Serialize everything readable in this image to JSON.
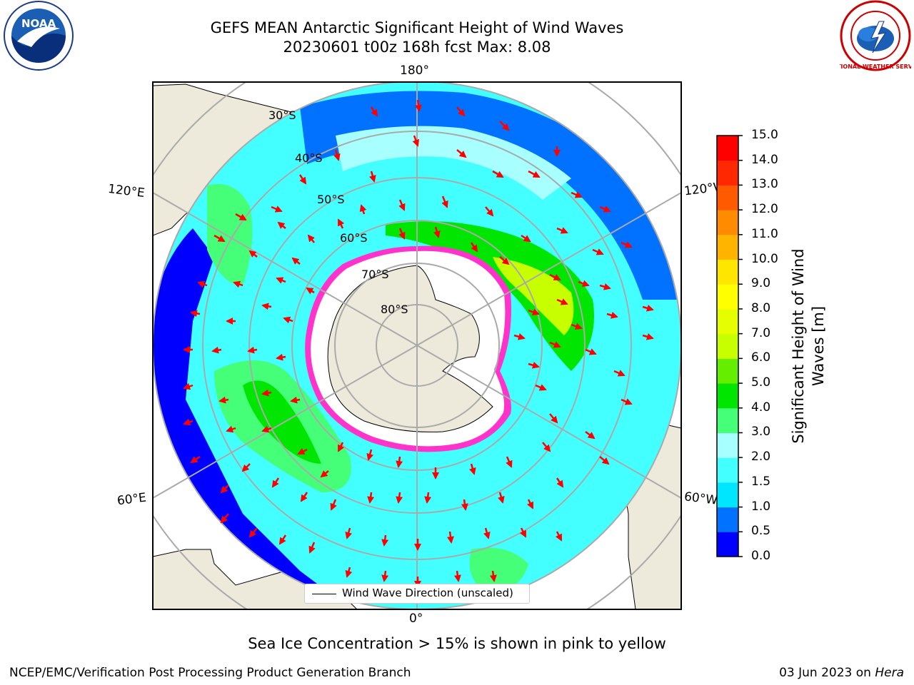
{
  "title": {
    "line1": "GEFS MEAN Antarctic Significant Height of Wind Waves",
    "line2": "20230601 t00z 168h fcst   Max: 8.08"
  },
  "map": {
    "longitude_labels": {
      "top": "180°",
      "bottom": "0°",
      "upper_left": "120°E",
      "upper_right": "120°W",
      "lower_left": "60°E",
      "lower_right": "60°W"
    },
    "latitude_labels": [
      "30°S",
      "40°S",
      "50°S",
      "60°S",
      "70°S",
      "80°S"
    ],
    "legend_label": "Wind Wave Direction (unscaled)"
  },
  "colorbar": {
    "title": "Significant Height of Wind Waves [m]",
    "ticks": [
      "0.0",
      "0.5",
      "1.0",
      "1.5",
      "2.0",
      "3.0",
      "4.0",
      "5.0",
      "6.0",
      "7.0",
      "8.0",
      "9.0",
      "10.0",
      "11.0",
      "12.0",
      "13.0",
      "14.0",
      "15.0"
    ],
    "colors": [
      "#0000ff",
      "#0072ff",
      "#00e6ff",
      "#44ffff",
      "#a8ffff",
      "#44ff77",
      "#00e600",
      "#66ee00",
      "#c8ff00",
      "#e6ff00",
      "#ffff00",
      "#ffe600",
      "#ffb400",
      "#ff8c00",
      "#ff5a00",
      "#ff2800",
      "#ff0000"
    ]
  },
  "note": "Sea Ice Concentration > 15% is shown in pink to yellow",
  "footer": {
    "left": "NCEP/EMC/Verification Post Processing Product Generation Branch",
    "right_date": "03 Jun 2023 on",
    "right_host": "Hera"
  },
  "logos": {
    "left": "NOAA",
    "right": "NATIONAL WEATHER SERVICE"
  },
  "palette": {
    "land": "#eeeadb",
    "ice_edge": "#ff33cc",
    "arrow": "#ff0000",
    "grid": "#aaaaaa"
  }
}
